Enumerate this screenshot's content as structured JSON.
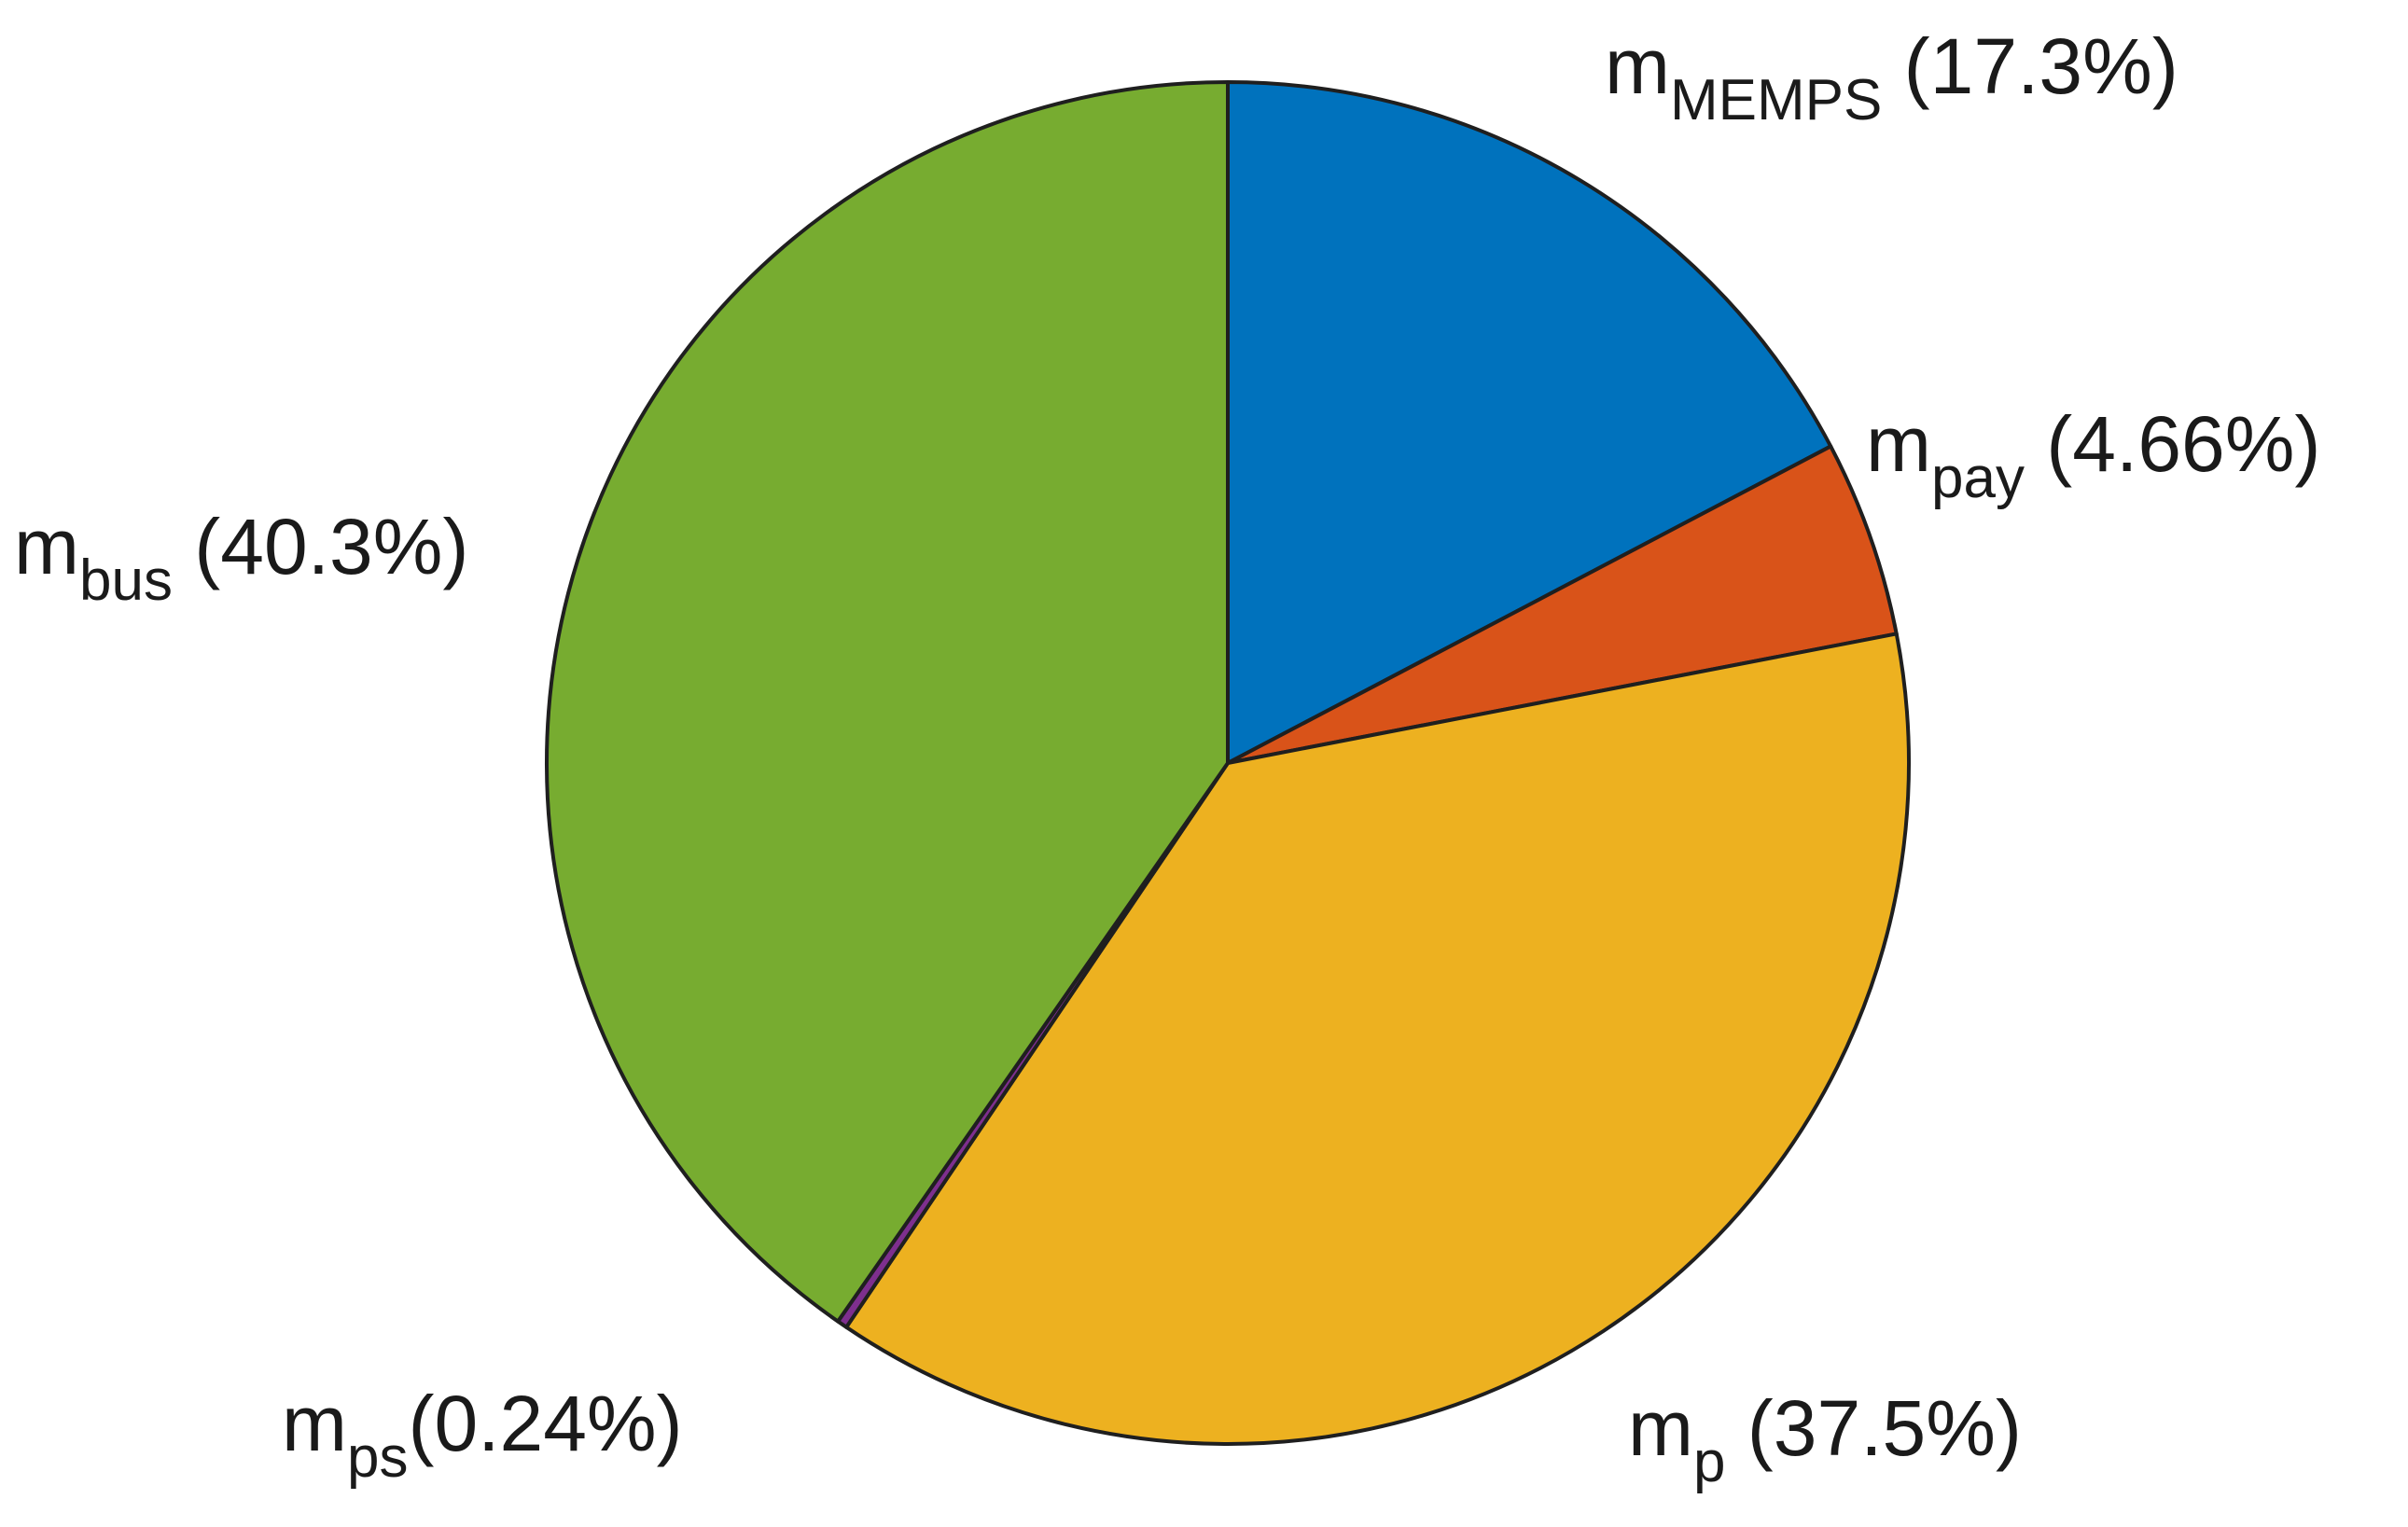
{
  "chart_data": {
    "type": "pie",
    "title": "",
    "start_angle_deg": 90,
    "direction": "clockwise",
    "slices": [
      {
        "base": "m",
        "sub": "MEMPS",
        "value": 17.3,
        "label": " (17.3%)",
        "color": "#0072BD"
      },
      {
        "base": "m",
        "sub": "pay",
        "value": 4.66,
        "label": " (4.66%)",
        "color": "#D95319"
      },
      {
        "base": "m",
        "sub": "p",
        "value": 37.5,
        "label": " (37.5%)",
        "color": "#EDB120"
      },
      {
        "base": "m",
        "sub": "ps",
        "value": 0.24,
        "label": "(0.24%)",
        "color": "#7E2F8E"
      },
      {
        "base": "m",
        "sub": "bus",
        "value": 40.3,
        "label": " (40.3%)",
        "color": "#77AC30"
      }
    ]
  }
}
